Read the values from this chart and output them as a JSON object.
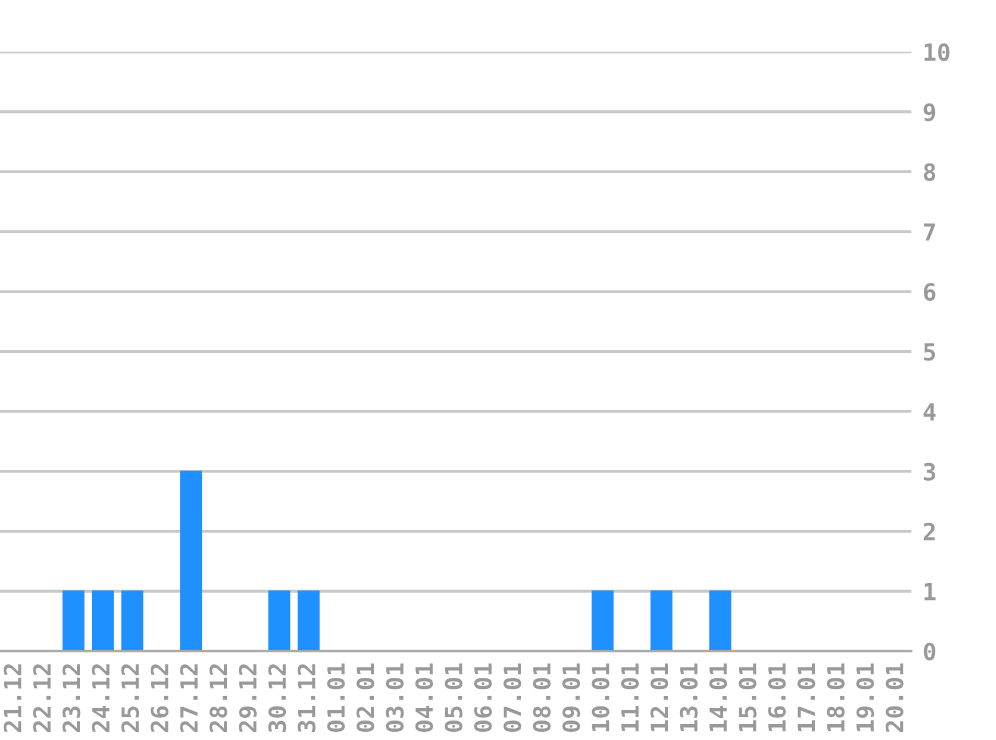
{
  "chart_data": {
    "type": "bar",
    "categories": [
      "21.12",
      "22.12",
      "23.12",
      "24.12",
      "25.12",
      "26.12",
      "27.12",
      "28.12",
      "29.12",
      "30.12",
      "31.12",
      "01.01",
      "02.01",
      "03.01",
      "04.01",
      "05.01",
      "06.01",
      "07.01",
      "08.01",
      "09.01",
      "10.01",
      "11.01",
      "12.01",
      "13.01",
      "14.01",
      "15.01",
      "16.01",
      "17.01",
      "18.01",
      "19.01",
      "20.01"
    ],
    "values": [
      0,
      0,
      1,
      1,
      1,
      0,
      3,
      0,
      0,
      1,
      1,
      0,
      0,
      0,
      0,
      0,
      0,
      0,
      0,
      0,
      1,
      0,
      1,
      0,
      1,
      0,
      0,
      0,
      0,
      0,
      0
    ],
    "color": "#1e90ff",
    "ylim": [
      0,
      10
    ],
    "yticks": [
      0,
      1,
      2,
      3,
      4,
      5,
      6,
      7,
      8,
      9,
      10
    ],
    "grid": "y",
    "legend": false
  }
}
